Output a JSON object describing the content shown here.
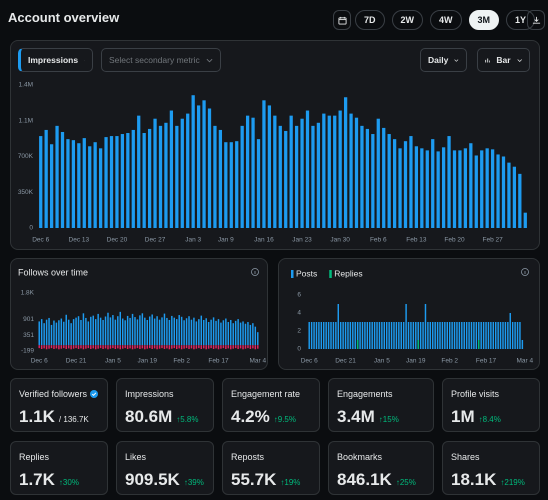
{
  "header": {
    "title": "Account overview",
    "ranges": [
      "7D",
      "2W",
      "4W",
      "3M",
      "1Y"
    ],
    "active_range": "3M"
  },
  "controls": {
    "metric": "Impressions",
    "secondary_placeholder": "Select secondary metric",
    "interval": "Daily",
    "chart_style": "Bar"
  },
  "chart_data": [
    {
      "type": "bar",
      "categories": [
        "Dec 6",
        null,
        null,
        null,
        null,
        null,
        null,
        "Dec 13",
        null,
        null,
        null,
        null,
        null,
        null,
        "Dec 20",
        null,
        null,
        null,
        null,
        null,
        null,
        "Dec 27",
        null,
        null,
        null,
        null,
        null,
        null,
        "Jan 3",
        null,
        null,
        null,
        null,
        null,
        "Jan 9",
        null,
        null,
        null,
        null,
        null,
        null,
        "Jan 16",
        null,
        null,
        null,
        null,
        null,
        null,
        "Jan 23",
        null,
        null,
        null,
        null,
        null,
        null,
        "Jan 30",
        null,
        null,
        null,
        null,
        null,
        null,
        "Feb 6",
        null,
        null,
        null,
        null,
        null,
        null,
        "Feb 13",
        null,
        null,
        null,
        null,
        null,
        null,
        "Feb 20",
        null,
        null,
        null,
        null,
        null,
        null,
        "Feb 27",
        null,
        null,
        null,
        null,
        null,
        null
      ],
      "series": [
        {
          "color": "#1d9bf0",
          "values": [
            900000,
            960000,
            820000,
            1000000,
            940000,
            870000,
            860000,
            830000,
            880000,
            800000,
            840000,
            780000,
            890000,
            900000,
            900000,
            920000,
            930000,
            960000,
            1100000,
            930000,
            970000,
            1070000,
            1000000,
            1030000,
            1150000,
            1000000,
            1070000,
            1120000,
            1300000,
            1200000,
            1250000,
            1170000,
            1000000,
            960000,
            840000,
            840000,
            850000,
            1000000,
            1100000,
            1080000,
            870000,
            1250000,
            1200000,
            1100000,
            1000000,
            950000,
            1100000,
            1000000,
            1070000,
            1150000,
            1000000,
            1030000,
            1120000,
            1100000,
            1100000,
            1150000,
            1280000,
            1120000,
            1080000,
            1000000,
            970000,
            920000,
            1070000,
            980000,
            920000,
            870000,
            780000,
            850000,
            900000,
            800000,
            780000,
            760000,
            870000,
            750000,
            790000,
            900000,
            760000,
            760000,
            780000,
            830000,
            710000,
            760000,
            780000,
            770000,
            720000,
            700000,
            640000,
            600000,
            530000,
            150000
          ]
        }
      ],
      "ylim": [
        0,
        1400000
      ],
      "yticks": [
        0,
        {
          "value": 350000,
          "label": "350K"
        },
        {
          "value": 700000,
          "label": "700K"
        },
        {
          "value": 1050000,
          "label": "1.1M"
        },
        {
          "value": 1400000,
          "label": "1.4M"
        }
      ],
      "grid": false
    },
    {
      "type": "bar",
      "title": "Follows over time",
      "categories": [
        "Dec 6",
        null,
        null,
        null,
        null,
        null,
        null,
        null,
        null,
        null,
        null,
        null,
        null,
        null,
        null,
        "Dec 21",
        null,
        null,
        null,
        null,
        null,
        null,
        null,
        null,
        null,
        null,
        null,
        null,
        null,
        null,
        "Jan 5",
        null,
        null,
        null,
        null,
        null,
        null,
        null,
        null,
        null,
        null,
        null,
        null,
        null,
        "Jan 19",
        null,
        null,
        null,
        null,
        null,
        null,
        null,
        null,
        null,
        null,
        null,
        null,
        null,
        "Feb 2",
        null,
        null,
        null,
        null,
        null,
        null,
        null,
        null,
        null,
        null,
        null,
        null,
        null,
        null,
        "Feb 17",
        null,
        null,
        null,
        null,
        null,
        null,
        null,
        null,
        null,
        null,
        null,
        null,
        null,
        null,
        null,
        "Mar 4"
      ],
      "series": [
        {
          "color": "#1d9bf0",
          "values": [
            820,
            900,
            760,
            880,
            940,
            700,
            850,
            780,
            860,
            920,
            810,
            1050,
            880,
            760,
            900,
            950,
            1000,
            870,
            1100,
            940,
            820,
            980,
            1020,
            900,
            1080,
            950,
            870,
            990,
            1120,
            960,
            1040,
            880,
            1000,
            1150,
            920,
            860,
            1010,
            940,
            1080,
            970,
            890,
            1030,
            1100,
            950,
            870,
            990,
            1060,
            920,
            1000,
            880,
            960,
            1090,
            940,
            870,
            1010,
            950,
            900,
            1040,
            980,
            860,
            930,
            1000,
            880,
            950,
            820,
            900,
            1020,
            870,
            930,
            800,
            880,
            960,
            840,
            900,
            780,
            860,
            920,
            800,
            870,
            760,
            840,
            900,
            780,
            820,
            740,
            800,
            700,
            760,
            640,
            450
          ]
        },
        {
          "color": "#e0245e",
          "values": [
            -100,
            -130,
            -110,
            -140,
            -120,
            -100,
            -130,
            -110,
            -140,
            -120,
            -100,
            -130,
            -110,
            -140,
            -120,
            -100,
            -130,
            -110,
            -140,
            -120,
            -100,
            -130,
            -110,
            -140,
            -120,
            -100,
            -130,
            -110,
            -140,
            -120,
            -100,
            -130,
            -110,
            -140,
            -120,
            -100,
            -130,
            -110,
            -140,
            -120,
            -100,
            -130,
            -110,
            -140,
            -120,
            -100,
            -130,
            -110,
            -140,
            -120,
            -100,
            -130,
            -110,
            -140,
            -120,
            -100,
            -130,
            -110,
            -140,
            -120,
            -100,
            -130,
            -110,
            -140,
            -120,
            -100,
            -130,
            -110,
            -140,
            -120,
            -100,
            -130,
            -110,
            -140,
            -120,
            -100,
            -130,
            -110,
            -140,
            -120,
            -100,
            -130,
            -110,
            -140,
            -120,
            -100,
            -130,
            -110,
            -140,
            -120
          ]
        }
      ],
      "ylim": [
        -199,
        1800
      ],
      "yticks": [
        -199,
        351,
        901,
        {
          "value": 1800,
          "label": "1.8K"
        }
      ],
      "grid": false
    },
    {
      "type": "bar",
      "categories": [
        "Dec 6",
        null,
        null,
        null,
        null,
        null,
        null,
        null,
        null,
        null,
        null,
        null,
        null,
        null,
        null,
        "Dec 21",
        null,
        null,
        null,
        null,
        null,
        null,
        null,
        null,
        null,
        null,
        null,
        null,
        null,
        null,
        "Jan 5",
        null,
        null,
        null,
        null,
        null,
        null,
        null,
        null,
        null,
        null,
        null,
        null,
        null,
        "Jan 19",
        null,
        null,
        null,
        null,
        null,
        null,
        null,
        null,
        null,
        null,
        null,
        null,
        null,
        "Feb 2",
        null,
        null,
        null,
        null,
        null,
        null,
        null,
        null,
        null,
        null,
        null,
        null,
        null,
        null,
        "Feb 17",
        null,
        null,
        null,
        null,
        null,
        null,
        null,
        null,
        null,
        null,
        null,
        null,
        null,
        null,
        null,
        "Mar 4"
      ],
      "series": [
        {
          "name": "Posts",
          "color": "#1d9bf0",
          "values": [
            3,
            3,
            3,
            3,
            3,
            3,
            3,
            3,
            3,
            3,
            3,
            3,
            5,
            3,
            3,
            3,
            3,
            3,
            3,
            3,
            3,
            3,
            3,
            3,
            3,
            3,
            3,
            3,
            3,
            3,
            3,
            3,
            3,
            3,
            3,
            3,
            3,
            3,
            3,
            3,
            5,
            3,
            3,
            3,
            3,
            3,
            3,
            3,
            5,
            3,
            3,
            3,
            3,
            3,
            3,
            3,
            3,
            3,
            3,
            3,
            3,
            3,
            3,
            3,
            3,
            3,
            3,
            3,
            3,
            3,
            3,
            3,
            3,
            3,
            3,
            3,
            3,
            3,
            3,
            3,
            3,
            3,
            3,
            4,
            3,
            3,
            3,
            3,
            1,
            0
          ]
        },
        {
          "name": "Replies",
          "color": "#00ba7c",
          "values": [
            0,
            0,
            0,
            0,
            0,
            0,
            0,
            0,
            0,
            0,
            0,
            0,
            0,
            0,
            0,
            0,
            0,
            0,
            0,
            0,
            1,
            0,
            0,
            0,
            0,
            0,
            0,
            0,
            0,
            0,
            0,
            0,
            0,
            0,
            0,
            0,
            0,
            0,
            0,
            0,
            0,
            0,
            0,
            0,
            0,
            1,
            0,
            0,
            0,
            0,
            0,
            0,
            0,
            0,
            0,
            0,
            0,
            0,
            0,
            0,
            0,
            0,
            0,
            0,
            0,
            0,
            0,
            0,
            0,
            0,
            1,
            0,
            0,
            0,
            0,
            0,
            0,
            0,
            0,
            0,
            0,
            0,
            0,
            0,
            0,
            0,
            0,
            0,
            0,
            0
          ]
        }
      ],
      "ylim": [
        0,
        6
      ],
      "yticks": [
        0,
        2,
        4,
        6
      ],
      "grid": false,
      "legend": "top-left"
    }
  ],
  "stats": [
    {
      "label": "Verified followers",
      "value": "1.1K",
      "total": "/ 136.7K"
    },
    {
      "label": "Impressions",
      "value": "80.6M",
      "change": "↑5.8%"
    },
    {
      "label": "Engagement rate",
      "value": "4.2%",
      "change": "↑9.5%"
    },
    {
      "label": "Engagements",
      "value": "3.4M",
      "change": "↑15%"
    },
    {
      "label": "Profile visits",
      "value": "1M",
      "change": "↑8.4%"
    },
    {
      "label": "Replies",
      "value": "1.7K",
      "change": "↑30%"
    },
    {
      "label": "Likes",
      "value": "909.5K",
      "change": "↑39%"
    },
    {
      "label": "Reposts",
      "value": "55.7K",
      "change": "↑19%"
    },
    {
      "label": "Bookmarks",
      "value": "846.1K",
      "change": "↑25%"
    },
    {
      "label": "Shares",
      "value": "18.1K",
      "change": "↑219%"
    }
  ]
}
